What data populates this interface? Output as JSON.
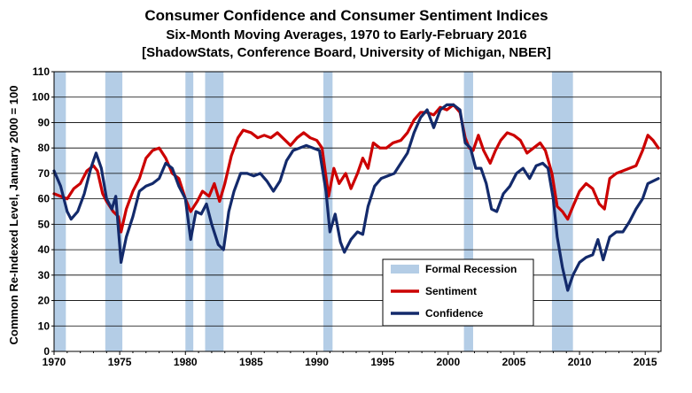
{
  "chart_data": {
    "type": "line",
    "title": "Consumer Confidence and Consumer Sentiment Indices",
    "subtitle_1": "Six-Month Moving Averages, 1970 to Early-February 2016",
    "subtitle_2": "[ShadowStats, Conference Board, University of Michigan, NBER]",
    "ylabel": "Common Re-Indexed Level, January 2000 = 100",
    "xlabel": "",
    "xlim": [
      1970,
      2016.2
    ],
    "ylim": [
      0,
      110
    ],
    "x_ticks": [
      1970,
      1975,
      1980,
      1985,
      1990,
      1995,
      2000,
      2005,
      2010,
      2015
    ],
    "y_ticks": [
      0,
      10,
      20,
      30,
      40,
      50,
      60,
      70,
      80,
      90,
      100,
      110
    ],
    "grid": "horizontal",
    "legend_position": "bottom-right",
    "recessions": [
      [
        1970.0,
        1970.9
      ],
      [
        1973.9,
        1975.2
      ],
      [
        1980.0,
        1980.6
      ],
      [
        1981.5,
        1982.9
      ],
      [
        1990.5,
        1991.2
      ],
      [
        2001.2,
        2001.9
      ],
      [
        2007.9,
        2009.5
      ]
    ],
    "legend": {
      "recession": "Formal Recession",
      "sentiment": "Sentiment",
      "confidence": "Confidence"
    },
    "colors": {
      "recession": "#b4cde6",
      "sentiment": "#cc0000",
      "confidence": "#132a6b"
    },
    "series": [
      {
        "name": "Sentiment",
        "points": [
          [
            1970.0,
            62
          ],
          [
            1970.5,
            61
          ],
          [
            1971.0,
            60
          ],
          [
            1971.5,
            64
          ],
          [
            1972.0,
            66
          ],
          [
            1972.5,
            71
          ],
          [
            1973.0,
            73
          ],
          [
            1973.3,
            71
          ],
          [
            1973.7,
            62
          ],
          [
            1974.0,
            59
          ],
          [
            1974.5,
            55
          ],
          [
            1974.9,
            53
          ],
          [
            1975.1,
            47
          ],
          [
            1975.5,
            56
          ],
          [
            1976.0,
            63
          ],
          [
            1976.5,
            68
          ],
          [
            1977.0,
            76
          ],
          [
            1977.5,
            79
          ],
          [
            1978.0,
            80
          ],
          [
            1978.5,
            76
          ],
          [
            1979.0,
            70
          ],
          [
            1979.5,
            68
          ],
          [
            1980.0,
            60
          ],
          [
            1980.4,
            55
          ],
          [
            1980.9,
            59
          ],
          [
            1981.3,
            63
          ],
          [
            1981.8,
            61
          ],
          [
            1982.2,
            66
          ],
          [
            1982.6,
            59
          ],
          [
            1983.0,
            66
          ],
          [
            1983.5,
            77
          ],
          [
            1984.0,
            84
          ],
          [
            1984.4,
            87
          ],
          [
            1985.0,
            86
          ],
          [
            1985.5,
            84
          ],
          [
            1986.0,
            85
          ],
          [
            1986.5,
            84
          ],
          [
            1987.0,
            86
          ],
          [
            1987.6,
            83
          ],
          [
            1988.0,
            81
          ],
          [
            1988.5,
            84
          ],
          [
            1989.0,
            86
          ],
          [
            1989.5,
            84
          ],
          [
            1990.0,
            83
          ],
          [
            1990.4,
            80
          ],
          [
            1990.9,
            61
          ],
          [
            1991.3,
            72
          ],
          [
            1991.7,
            66
          ],
          [
            1992.2,
            70
          ],
          [
            1992.6,
            64
          ],
          [
            1993.1,
            70
          ],
          [
            1993.5,
            76
          ],
          [
            1993.9,
            72
          ],
          [
            1994.3,
            82
          ],
          [
            1994.8,
            80
          ],
          [
            1995.3,
            80
          ],
          [
            1995.8,
            82
          ],
          [
            1996.4,
            83
          ],
          [
            1996.9,
            86
          ],
          [
            1997.4,
            91
          ],
          [
            1997.9,
            94
          ],
          [
            1998.4,
            94
          ],
          [
            1998.9,
            93
          ],
          [
            1999.4,
            96
          ],
          [
            1999.9,
            95
          ],
          [
            2000.4,
            97
          ],
          [
            2000.9,
            94
          ],
          [
            2001.3,
            84
          ],
          [
            2001.6,
            80
          ],
          [
            2001.9,
            79
          ],
          [
            2002.3,
            85
          ],
          [
            2002.7,
            79
          ],
          [
            2003.2,
            74
          ],
          [
            2003.6,
            79
          ],
          [
            2004.0,
            83
          ],
          [
            2004.5,
            86
          ],
          [
            2005.0,
            85
          ],
          [
            2005.5,
            83
          ],
          [
            2006.0,
            78
          ],
          [
            2006.5,
            80
          ],
          [
            2007.0,
            82
          ],
          [
            2007.4,
            79
          ],
          [
            2007.9,
            70
          ],
          [
            2008.3,
            57
          ],
          [
            2008.7,
            55
          ],
          [
            2009.1,
            52
          ],
          [
            2009.5,
            57
          ],
          [
            2010.0,
            63
          ],
          [
            2010.5,
            66
          ],
          [
            2011.0,
            64
          ],
          [
            2011.5,
            58
          ],
          [
            2011.9,
            56
          ],
          [
            2012.3,
            68
          ],
          [
            2012.8,
            70
          ],
          [
            2013.3,
            71
          ],
          [
            2013.8,
            72
          ],
          [
            2014.3,
            73
          ],
          [
            2014.8,
            79
          ],
          [
            2015.2,
            85
          ],
          [
            2015.6,
            83
          ],
          [
            2016.0,
            80
          ]
        ]
      },
      {
        "name": "Confidence",
        "points": [
          [
            1970.0,
            71
          ],
          [
            1970.5,
            65
          ],
          [
            1971.0,
            55
          ],
          [
            1971.3,
            52
          ],
          [
            1971.8,
            55
          ],
          [
            1972.3,
            62
          ],
          [
            1972.8,
            72
          ],
          [
            1973.2,
            78
          ],
          [
            1973.6,
            72
          ],
          [
            1974.0,
            60
          ],
          [
            1974.4,
            56
          ],
          [
            1974.7,
            61
          ],
          [
            1975.1,
            35
          ],
          [
            1975.5,
            45
          ],
          [
            1976.0,
            53
          ],
          [
            1976.5,
            63
          ],
          [
            1977.0,
            65
          ],
          [
            1977.5,
            66
          ],
          [
            1978.0,
            68
          ],
          [
            1978.5,
            74
          ],
          [
            1979.0,
            72
          ],
          [
            1979.5,
            65
          ],
          [
            1980.0,
            60
          ],
          [
            1980.4,
            44
          ],
          [
            1980.8,
            55
          ],
          [
            1981.2,
            54
          ],
          [
            1981.6,
            58
          ],
          [
            1982.0,
            50
          ],
          [
            1982.5,
            42
          ],
          [
            1982.9,
            40
          ],
          [
            1983.3,
            55
          ],
          [
            1983.7,
            63
          ],
          [
            1984.2,
            70
          ],
          [
            1984.7,
            70
          ],
          [
            1985.2,
            69
          ],
          [
            1985.7,
            70
          ],
          [
            1986.2,
            67
          ],
          [
            1986.7,
            63
          ],
          [
            1987.2,
            67
          ],
          [
            1987.7,
            75
          ],
          [
            1988.2,
            79
          ],
          [
            1988.7,
            80
          ],
          [
            1989.2,
            81
          ],
          [
            1989.7,
            80
          ],
          [
            1990.2,
            79
          ],
          [
            1990.7,
            63
          ],
          [
            1991.0,
            47
          ],
          [
            1991.4,
            54
          ],
          [
            1991.8,
            43
          ],
          [
            1992.1,
            39
          ],
          [
            1992.6,
            44
          ],
          [
            1993.1,
            47
          ],
          [
            1993.5,
            46
          ],
          [
            1993.9,
            57
          ],
          [
            1994.4,
            65
          ],
          [
            1994.9,
            68
          ],
          [
            1995.4,
            69
          ],
          [
            1995.9,
            70
          ],
          [
            1996.4,
            74
          ],
          [
            1996.9,
            78
          ],
          [
            1997.4,
            86
          ],
          [
            1997.9,
            92
          ],
          [
            1998.4,
            95
          ],
          [
            1998.9,
            88
          ],
          [
            1999.4,
            95
          ],
          [
            1999.9,
            97
          ],
          [
            2000.4,
            97
          ],
          [
            2000.9,
            95
          ],
          [
            2001.3,
            82
          ],
          [
            2001.7,
            80
          ],
          [
            2002.1,
            72
          ],
          [
            2002.5,
            72
          ],
          [
            2002.9,
            66
          ],
          [
            2003.3,
            56
          ],
          [
            2003.7,
            55
          ],
          [
            2004.2,
            62
          ],
          [
            2004.7,
            65
          ],
          [
            2005.2,
            70
          ],
          [
            2005.7,
            72
          ],
          [
            2006.2,
            68
          ],
          [
            2006.7,
            73
          ],
          [
            2007.2,
            74
          ],
          [
            2007.6,
            72
          ],
          [
            2008.0,
            60
          ],
          [
            2008.3,
            45
          ],
          [
            2008.7,
            33
          ],
          [
            2009.1,
            24
          ],
          [
            2009.5,
            30
          ],
          [
            2010.0,
            35
          ],
          [
            2010.5,
            37
          ],
          [
            2011.0,
            38
          ],
          [
            2011.4,
            44
          ],
          [
            2011.8,
            36
          ],
          [
            2012.3,
            45
          ],
          [
            2012.8,
            47
          ],
          [
            2013.3,
            47
          ],
          [
            2013.8,
            51
          ],
          [
            2014.3,
            56
          ],
          [
            2014.8,
            60
          ],
          [
            2015.2,
            66
          ],
          [
            2015.6,
            67
          ],
          [
            2016.0,
            68
          ]
        ]
      }
    ]
  }
}
